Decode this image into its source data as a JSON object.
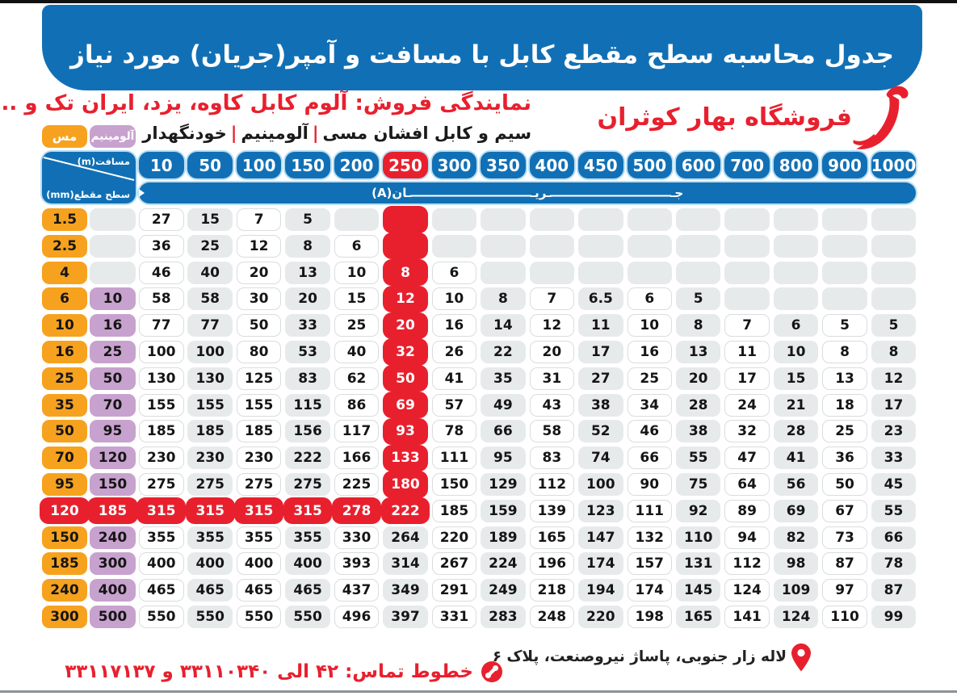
{
  "banner": {
    "title": "جدول محاسبه سطح مقطع کابل با مسافت و آمپر(جریان) مورد نیاز"
  },
  "header": {
    "dealer_line": "نمایندگی فروش: آلوم کابل کاوه، یزد، ایران تک و ...",
    "products": {
      "segments": [
        "سیم و کابل افشان مسی",
        "آلومینیم",
        "خودنگهدار"
      ],
      "separator": "|"
    },
    "store_name": "فروشگاه بهار کوثران",
    "logo": "kosaran-bird-logo"
  },
  "table": {
    "corner": {
      "top_label": "مسافت(m)",
      "bottom_label": "سطح مقطع(mm)"
    },
    "material_headers": {
      "copper": "مس",
      "aluminum": "آلومینیم"
    },
    "band_label": "جریان(A)",
    "band_parts": {
      "start": "جـ",
      "middle": "ـریـ",
      "end": "ـان(A)"
    },
    "distance_headers": [
      "10",
      "50",
      "100",
      "150",
      "200",
      "250",
      "300",
      "350",
      "400",
      "450",
      "500",
      "600",
      "700",
      "800",
      "900",
      "1000"
    ],
    "highlight_column_index": 5,
    "highlight_row_index": 11,
    "rows": [
      {
        "cu": "1.5",
        "al": null,
        "v": [
          "27",
          "15",
          "7",
          "5",
          null,
          null,
          null,
          null,
          null,
          null,
          null,
          null,
          null,
          null,
          null,
          null
        ]
      },
      {
        "cu": "2.5",
        "al": null,
        "v": [
          "36",
          "25",
          "12",
          "8",
          "6",
          null,
          null,
          null,
          null,
          null,
          null,
          null,
          null,
          null,
          null,
          null
        ]
      },
      {
        "cu": "4",
        "al": null,
        "v": [
          "46",
          "40",
          "20",
          "13",
          "10",
          "8",
          "6",
          null,
          null,
          null,
          null,
          null,
          null,
          null,
          null,
          null
        ]
      },
      {
        "cu": "6",
        "al": "10",
        "v": [
          "58",
          "58",
          "30",
          "20",
          "15",
          "12",
          "10",
          "8",
          "7",
          "6.5",
          "6",
          "5",
          null,
          null,
          null,
          null
        ]
      },
      {
        "cu": "10",
        "al": "16",
        "v": [
          "77",
          "77",
          "50",
          "33",
          "25",
          "20",
          "16",
          "14",
          "12",
          "11",
          "10",
          "8",
          "7",
          "6",
          "5",
          "5"
        ]
      },
      {
        "cu": "16",
        "al": "25",
        "v": [
          "100",
          "100",
          "80",
          "53",
          "40",
          "32",
          "26",
          "22",
          "20",
          "17",
          "16",
          "13",
          "11",
          "10",
          "8",
          "8"
        ]
      },
      {
        "cu": "25",
        "al": "50",
        "v": [
          "130",
          "130",
          "125",
          "83",
          "62",
          "50",
          "41",
          "35",
          "31",
          "27",
          "25",
          "20",
          "17",
          "15",
          "13",
          "12"
        ]
      },
      {
        "cu": "35",
        "al": "70",
        "v": [
          "155",
          "155",
          "155",
          "115",
          "86",
          "69",
          "57",
          "49",
          "43",
          "38",
          "34",
          "28",
          "24",
          "21",
          "18",
          "17"
        ]
      },
      {
        "cu": "50",
        "al": "95",
        "v": [
          "185",
          "185",
          "185",
          "156",
          "117",
          "93",
          "78",
          "66",
          "58",
          "52",
          "46",
          "38",
          "32",
          "28",
          "25",
          "23"
        ]
      },
      {
        "cu": "70",
        "al": "120",
        "v": [
          "230",
          "230",
          "230",
          "222",
          "166",
          "133",
          "111",
          "95",
          "83",
          "74",
          "66",
          "55",
          "47",
          "41",
          "36",
          "33"
        ]
      },
      {
        "cu": "95",
        "al": "150",
        "v": [
          "275",
          "275",
          "275",
          "275",
          "225",
          "180",
          "150",
          "129",
          "112",
          "100",
          "90",
          "75",
          "64",
          "56",
          "50",
          "45"
        ]
      },
      {
        "cu": "120",
        "al": "185",
        "v": [
          "315",
          "315",
          "315",
          "315",
          "278",
          "222",
          "185",
          "159",
          "139",
          "123",
          "111",
          "92",
          "89",
          "69",
          "67",
          "55"
        ]
      },
      {
        "cu": "150",
        "al": "240",
        "v": [
          "355",
          "355",
          "355",
          "355",
          "330",
          "264",
          "220",
          "189",
          "165",
          "147",
          "132",
          "110",
          "94",
          "82",
          "73",
          "66"
        ]
      },
      {
        "cu": "185",
        "al": "300",
        "v": [
          "400",
          "400",
          "400",
          "400",
          "393",
          "314",
          "267",
          "224",
          "196",
          "174",
          "157",
          "131",
          "112",
          "98",
          "87",
          "78"
        ]
      },
      {
        "cu": "240",
        "al": "400",
        "v": [
          "465",
          "465",
          "465",
          "465",
          "437",
          "349",
          "291",
          "249",
          "218",
          "194",
          "174",
          "145",
          "124",
          "109",
          "97",
          "87"
        ]
      },
      {
        "cu": "300",
        "al": "500",
        "v": [
          "550",
          "550",
          "550",
          "550",
          "496",
          "397",
          "331",
          "283",
          "248",
          "220",
          "198",
          "165",
          "141",
          "124",
          "110",
          "99"
        ]
      }
    ]
  },
  "footer": {
    "phone_label": "خطوط تماس: ۴۲ الی ۳۳۱۱۰۳۴۰ و ۳۳۱۱۷۱۳۷",
    "address": "لاله زار جنوبی، پاساژ نیروصنعت، پلاک ۶"
  },
  "colors": {
    "blue": "#1170b5",
    "light_blue_outline": "#b8def5",
    "red": "#e8202e",
    "orange": "#f6a21f",
    "purple": "#c8a2ce",
    "gray_cell": "#e7eaeb"
  }
}
